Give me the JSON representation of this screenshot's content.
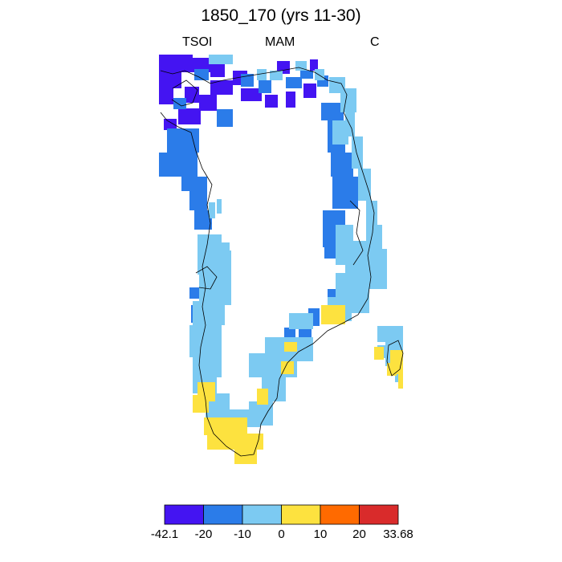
{
  "title": "1850_170 (yrs 11-30)",
  "subtitles": {
    "left": "TSOI",
    "center": "MAM",
    "right": "C"
  },
  "colors": {
    "c1": "#4414f2",
    "c2": "#2b7ce9",
    "c3": "#7ccaf2",
    "c4": "#fde23f",
    "c5": "#ff6a00",
    "c6": "#d92b2b",
    "coast": "#000000"
  },
  "legend": {
    "colors": [
      "#4414f2",
      "#2b7ce9",
      "#7ccaf2",
      "#fde23f",
      "#ff6a00",
      "#d92b2b"
    ],
    "labels": [
      "-42.1",
      "-20",
      "-10",
      "0",
      "10",
      "20",
      "33.68"
    ]
  }
}
